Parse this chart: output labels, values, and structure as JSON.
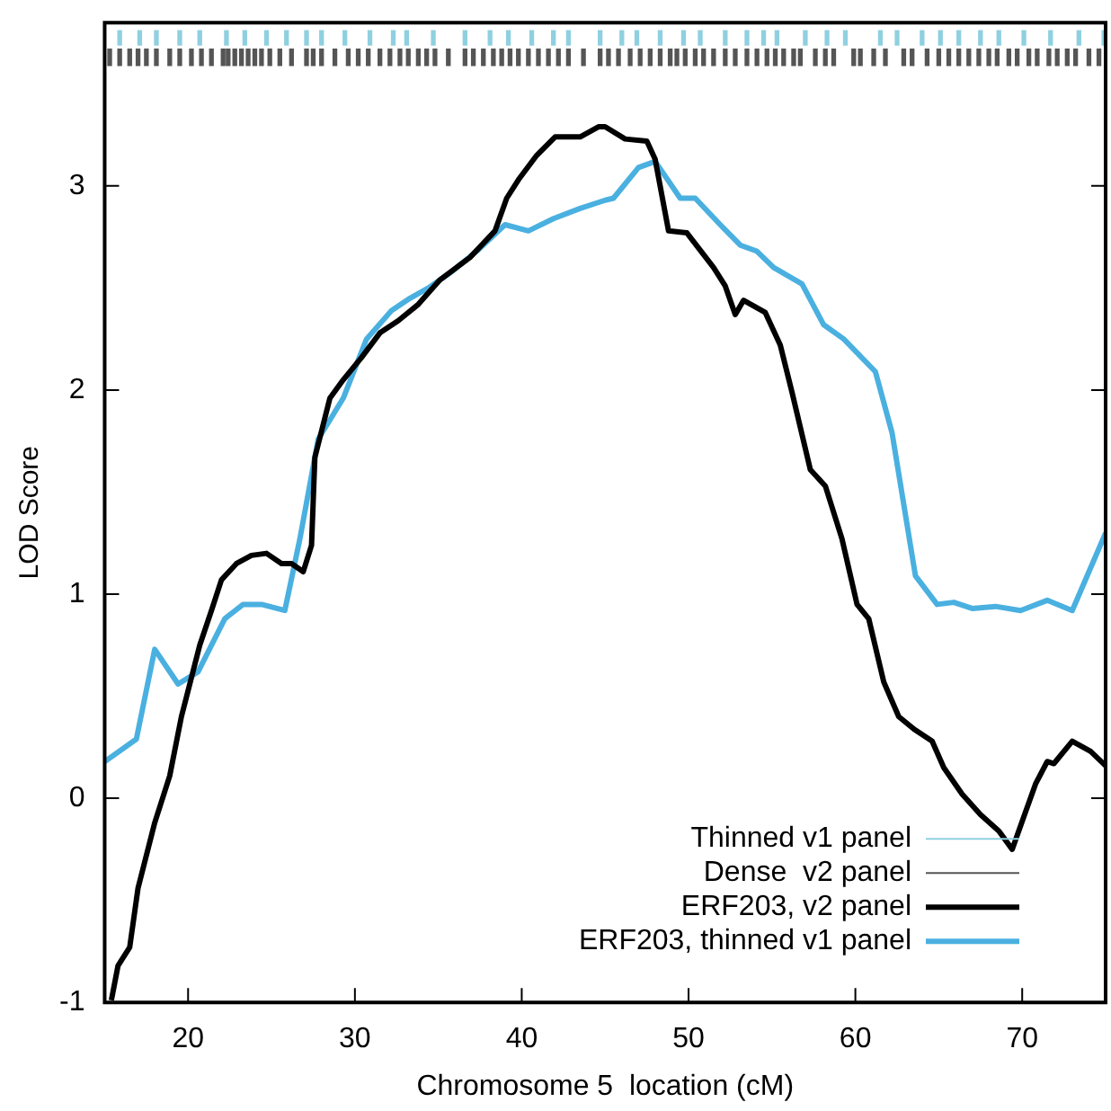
{
  "chart_data": {
    "type": "line",
    "xlabel": "Chromosome 5  location (cM)",
    "ylabel": "LOD Score",
    "xlim": [
      15,
      75
    ],
    "xticks": [
      20,
      30,
      40,
      50,
      60,
      70
    ],
    "ylim": [
      -1,
      3.8
    ],
    "yticks": [
      -1,
      0,
      1,
      2,
      3
    ],
    "grid": false,
    "legend": "bottom right",
    "series": [
      {
        "name": "Thinned v1 panel",
        "type": "bar",
        "color": "#8fd0e0",
        "x": [
          15.9,
          17.1,
          18.1,
          19.5,
          20.7,
          22.3,
          23.4,
          24.7,
          25.9,
          27.1,
          28.0,
          29.4,
          30.9,
          32.3,
          33.1,
          34.7,
          36.6,
          38.1,
          39.2,
          40.6,
          41.9,
          42.8,
          44.7,
          46.0,
          46.9,
          48.3,
          49.7,
          50.7,
          52.2,
          53.5,
          54.5,
          55.3,
          57.0,
          58.3,
          59.4,
          61.5,
          62.5,
          64.0,
          65.1,
          66.2,
          67.5,
          68.6,
          70.1,
          71.7,
          73.4,
          74.9
        ],
        "base": [
          3.69,
          3.69,
          3.69,
          3.69,
          3.69,
          3.69,
          3.69,
          3.69,
          3.69,
          3.69,
          3.69,
          3.69,
          3.69,
          3.69,
          3.69,
          3.69,
          3.69,
          3.69,
          3.69,
          3.69,
          3.69,
          3.69,
          3.69,
          3.69,
          3.69,
          3.69,
          3.69,
          3.69,
          3.69,
          3.69,
          3.69,
          3.69,
          3.69,
          3.69,
          3.69,
          3.69,
          3.69,
          3.69,
          3.69,
          3.69,
          3.69,
          3.69,
          3.69,
          3.69,
          3.69,
          3.69
        ],
        "values": [
          0.07,
          0.07,
          0.07,
          0.07,
          0.07,
          0.07,
          0.07,
          0.07,
          0.07,
          0.07,
          0.07,
          0.07,
          0.07,
          0.07,
          0.07,
          0.07,
          0.07,
          0.07,
          0.07,
          0.07,
          0.07,
          0.07,
          0.07,
          0.07,
          0.07,
          0.07,
          0.07,
          0.07,
          0.07,
          0.07,
          0.07,
          0.07,
          0.07,
          0.07,
          0.07,
          0.07,
          0.07,
          0.07,
          0.07,
          0.07,
          0.07,
          0.07,
          0.07,
          0.07,
          0.07,
          0.07
        ]
      },
      {
        "name": "Dense  v2 panel",
        "type": "bar",
        "color": "#555555",
        "x": [
          15.3,
          15.9,
          16.5,
          17.0,
          17.5,
          18.1,
          18.9,
          19.5,
          20.2,
          20.8,
          21.4,
          22.1,
          22.4,
          22.8,
          23.2,
          23.6,
          24.0,
          24.4,
          24.9,
          25.5,
          26.2,
          27.1,
          27.5,
          28.0,
          28.8,
          29.6,
          30.2,
          30.8,
          31.5,
          32.1,
          32.7,
          33.2,
          33.8,
          34.3,
          34.8,
          35.6,
          36.6,
          37.1,
          37.7,
          38.3,
          38.8,
          39.3,
          39.8,
          40.4,
          41.0,
          41.6,
          42.2,
          42.8,
          43.7,
          44.7,
          45.2,
          45.8,
          46.5,
          47.1,
          47.7,
          48.3,
          48.9,
          49.3,
          49.8,
          50.4,
          50.9,
          51.5,
          52.2,
          52.8,
          53.5,
          54.1,
          54.7,
          55.2,
          55.7,
          56.3,
          56.7,
          57.6,
          58.2,
          58.7,
          59.9,
          60.3,
          61.1,
          61.8,
          62.9,
          63.4,
          64.3,
          65.0,
          65.6,
          66.2,
          66.8,
          67.4,
          68.0,
          68.5,
          69.2,
          69.7,
          70.4,
          70.9,
          71.6,
          72.1,
          72.7,
          73.2,
          74.0,
          74.6
        ],
        "base": [
          3.59,
          3.59,
          3.59,
          3.59,
          3.59,
          3.59,
          3.59,
          3.59,
          3.59,
          3.59,
          3.59,
          3.59,
          3.59,
          3.59,
          3.59,
          3.59,
          3.59,
          3.59,
          3.59,
          3.59,
          3.59,
          3.59,
          3.59,
          3.59,
          3.59,
          3.59,
          3.59,
          3.59,
          3.59,
          3.59,
          3.59,
          3.59,
          3.59,
          3.59,
          3.59,
          3.59,
          3.59,
          3.59,
          3.59,
          3.59,
          3.59,
          3.59,
          3.59,
          3.59,
          3.59,
          3.59,
          3.59,
          3.59,
          3.59,
          3.59,
          3.59,
          3.59,
          3.59,
          3.59,
          3.59,
          3.59,
          3.59,
          3.59,
          3.59,
          3.59,
          3.59,
          3.59,
          3.59,
          3.59,
          3.59,
          3.59,
          3.59,
          3.59,
          3.59,
          3.59,
          3.59,
          3.59,
          3.59,
          3.59,
          3.59,
          3.59,
          3.59,
          3.59,
          3.59,
          3.59,
          3.59,
          3.59,
          3.59,
          3.59,
          3.59,
          3.59,
          3.59,
          3.59,
          3.59,
          3.59,
          3.59,
          3.59,
          3.59,
          3.59,
          3.59,
          3.59,
          3.59,
          3.59
        ],
        "values": [
          0.08,
          0.08,
          0.08,
          0.08,
          0.08,
          0.08,
          0.08,
          0.08,
          0.08,
          0.08,
          0.08,
          0.08,
          0.08,
          0.08,
          0.08,
          0.08,
          0.08,
          0.08,
          0.08,
          0.08,
          0.08,
          0.08,
          0.08,
          0.08,
          0.08,
          0.08,
          0.08,
          0.08,
          0.08,
          0.08,
          0.08,
          0.08,
          0.08,
          0.08,
          0.08,
          0.08,
          0.08,
          0.08,
          0.08,
          0.08,
          0.08,
          0.08,
          0.08,
          0.08,
          0.08,
          0.08,
          0.08,
          0.08,
          0.08,
          0.08,
          0.08,
          0.08,
          0.08,
          0.08,
          0.08,
          0.08,
          0.08,
          0.08,
          0.08,
          0.08,
          0.08,
          0.08,
          0.08,
          0.08,
          0.08,
          0.08,
          0.08,
          0.08,
          0.08,
          0.08,
          0.08,
          0.08,
          0.08,
          0.08,
          0.08,
          0.08,
          0.08,
          0.08,
          0.08,
          0.08,
          0.08,
          0.08,
          0.08,
          0.08,
          0.08,
          0.08,
          0.08,
          0.08,
          0.08,
          0.08,
          0.08,
          0.08,
          0.08,
          0.08,
          0.08,
          0.08,
          0.08,
          0.08
        ]
      },
      {
        "name": "ERF203, v2 panel",
        "color": "#000000",
        "x": [
          15.4,
          15.8,
          16.5,
          17.0,
          18.0,
          18.9,
          19.6,
          20.7,
          21.4,
          22.0,
          22.9,
          23.8,
          24.7,
          25.6,
          26.2,
          26.9,
          27.4,
          27.6,
          28.5,
          29.3,
          30.4,
          31.5,
          32.6,
          33.8,
          35.1,
          36.9,
          38.4,
          39.1,
          39.8,
          40.9,
          42.0,
          43.5,
          44.6,
          45.0,
          46.2,
          47.5,
          48.0,
          48.8,
          49.9,
          51.5,
          52.2,
          52.8,
          53.3,
          54.6,
          55.5,
          56.2,
          57.3,
          58.2,
          59.2,
          60.1,
          60.8,
          61.7,
          62.6,
          63.5,
          64.6,
          65.3,
          66.4,
          67.5,
          68.6,
          69.4,
          70.1,
          70.8,
          71.5,
          71.9,
          73.0,
          74.1,
          75.0
        ],
        "values": [
          -0.99,
          -0.82,
          -0.73,
          -0.44,
          -0.12,
          0.11,
          0.4,
          0.75,
          0.92,
          1.07,
          1.15,
          1.19,
          1.2,
          1.15,
          1.15,
          1.11,
          1.24,
          1.67,
          1.96,
          2.05,
          2.16,
          2.28,
          2.34,
          2.42,
          2.54,
          2.65,
          2.78,
          2.94,
          3.03,
          3.15,
          3.24,
          3.24,
          3.29,
          3.29,
          3.23,
          3.22,
          3.13,
          2.78,
          2.77,
          2.6,
          2.51,
          2.37,
          2.44,
          2.38,
          2.22,
          1.99,
          1.61,
          1.53,
          1.27,
          0.95,
          0.88,
          0.57,
          0.4,
          0.34,
          0.28,
          0.15,
          0.02,
          -0.08,
          -0.16,
          -0.25,
          -0.09,
          0.07,
          0.18,
          0.17,
          0.28,
          0.23,
          0.16
        ]
      },
      {
        "name": "ERF203, thinned v1 panel",
        "color": "#4ab0e0",
        "x": [
          15.0,
          16.9,
          18.0,
          19.4,
          20.6,
          22.2,
          23.3,
          24.4,
          25.8,
          26.7,
          27.8,
          29.3,
          30.7,
          32.2,
          33.3,
          34.4,
          35.8,
          37.3,
          39.0,
          40.4,
          41.9,
          43.5,
          45.0,
          45.5,
          47.0,
          48.0,
          49.5,
          50.4,
          51.9,
          53.1,
          54.1,
          55.1,
          56.8,
          58.1,
          59.3,
          61.2,
          62.2,
          63.6,
          64.9,
          65.9,
          67.0,
          68.4,
          69.9,
          71.5,
          73.0,
          75.0
        ],
        "values": [
          0.18,
          0.29,
          0.73,
          0.56,
          0.62,
          0.88,
          0.95,
          0.95,
          0.92,
          1.27,
          1.76,
          1.96,
          2.25,
          2.39,
          2.45,
          2.5,
          2.58,
          2.68,
          2.81,
          2.78,
          2.84,
          2.89,
          2.93,
          2.94,
          3.09,
          3.12,
          2.94,
          2.94,
          2.81,
          2.71,
          2.68,
          2.6,
          2.52,
          2.32,
          2.25,
          2.09,
          1.79,
          1.09,
          0.95,
          0.96,
          0.93,
          0.94,
          0.92,
          0.97,
          0.92,
          1.3
        ]
      }
    ]
  }
}
